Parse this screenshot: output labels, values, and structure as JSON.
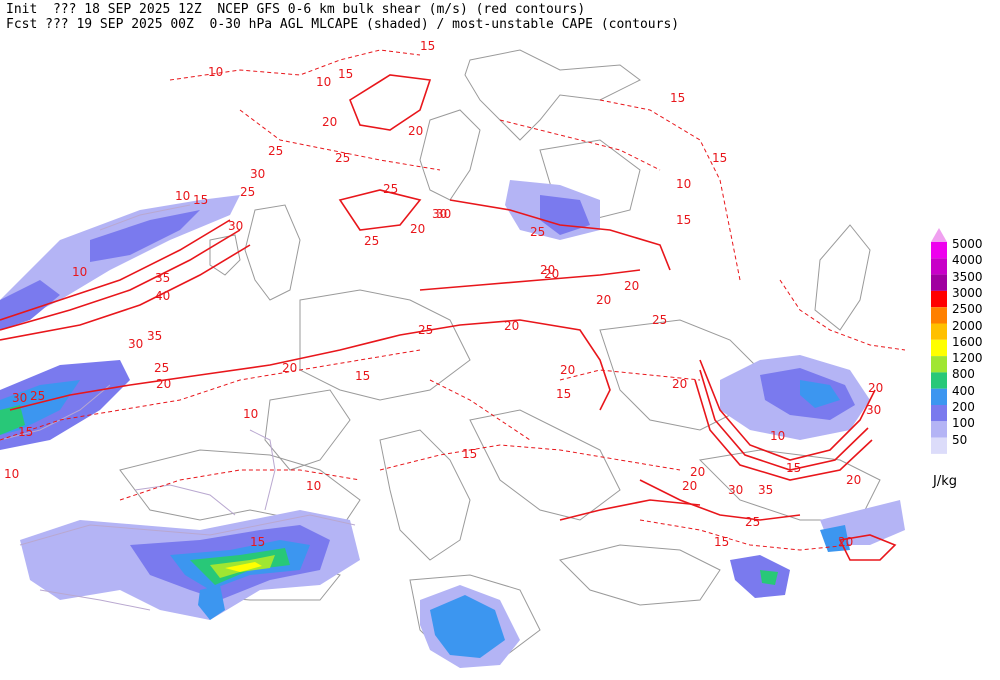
{
  "header": {
    "line1": "Init  ??? 18 SEP 2025 12Z  NCEP GFS 0-6 km bulk shear (m/s) (red contours)",
    "line2": "Fcst ??? 19 SEP 2025 00Z  0-30 hPa AGL MLCAPE (shaded) / most-unstable CAPE (contours)"
  },
  "colorbar": {
    "units": "J/kg",
    "levels": [
      "5000",
      "4000",
      "3500",
      "3000",
      "2500",
      "2000",
      "1600",
      "1200",
      "800",
      "400",
      "200",
      "100",
      "50"
    ],
    "colors": [
      "#ee00ee",
      "#c800c8",
      "#a000a0",
      "#ff0000",
      "#ff8000",
      "#ffc000",
      "#ffff00",
      "#a0e632",
      "#28c878",
      "#3c96f0",
      "#7a7aee",
      "#b4b4f5",
      "#dcdcfa"
    ]
  },
  "shear_labels": [
    "15",
    "10",
    "15",
    "10",
    "15",
    "20",
    "20",
    "25",
    "25",
    "30",
    "25",
    "10",
    "15",
    "30",
    "25",
    "30",
    "20",
    "10",
    "35",
    "40",
    "35",
    "30",
    "25",
    "20",
    "30",
    "25",
    "15",
    "10",
    "10",
    "20",
    "25",
    "20",
    "20",
    "25",
    "15",
    "20",
    "15",
    "20",
    "20",
    "15",
    "25",
    "30",
    "35",
    "30",
    "20",
    "20",
    "10",
    "15",
    "20",
    "25",
    "20",
    "10",
    "15",
    "30",
    "10",
    "20",
    "15",
    "20",
    "25",
    "20",
    "15",
    "15"
  ]
}
